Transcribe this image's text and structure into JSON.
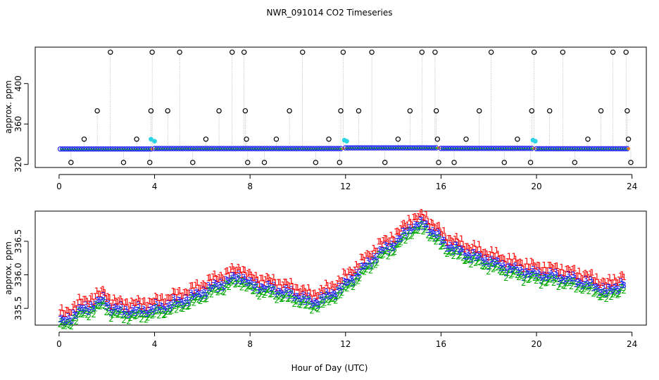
{
  "figure": {
    "title": "NWR_091014  CO2 Timeseries",
    "xlabel": "Hour of Day (UTC)"
  },
  "colors": {
    "black": "#000000",
    "blue": "#1a1aff",
    "green": "#00aa00",
    "red": "#ff0000",
    "cyan": "#2ad4e4",
    "orange": "#ff7f1e",
    "stem": "#9a9a9a"
  },
  "chart_data": [
    {
      "type": "scatter",
      "ylabel": "approx. ppm",
      "xlim": [
        -1,
        24.6
      ],
      "ylim": [
        317,
        436
      ],
      "xticks": [
        0,
        4,
        8,
        12,
        16,
        20,
        24
      ],
      "yticks": [
        320,
        360,
        400
      ],
      "xtick_labels": [
        "0",
        "4",
        "8",
        "12",
        "16",
        "20",
        "24"
      ],
      "ytick_labels": [
        "320",
        "360",
        "400"
      ],
      "baseline_segments": [
        {
          "start": 0.05,
          "end": 3.85,
          "value": 335.3
        },
        {
          "start": 4.0,
          "end": 11.85,
          "value": 335.7
        },
        {
          "start": 12.0,
          "end": 15.85,
          "value": 336.4
        },
        {
          "start": 16.0,
          "end": 19.85,
          "value": 335.9
        },
        {
          "start": 20.0,
          "end": 23.8,
          "value": 335.6
        }
      ],
      "baseline_step_hours": 0.1,
      "outlier_series": {
        "name": "raw spikes (black circles)",
        "points": [
          [
            0.5,
            322
          ],
          [
            1.05,
            345
          ],
          [
            1.6,
            373
          ],
          [
            2.15,
            431
          ],
          [
            2.7,
            322
          ],
          [
            3.25,
            345
          ],
          [
            3.8,
            322
          ],
          [
            3.85,
            373
          ],
          [
            3.9,
            431
          ],
          [
            4.55,
            373
          ],
          [
            5.05,
            431
          ],
          [
            5.6,
            322
          ],
          [
            6.15,
            345
          ],
          [
            6.7,
            373
          ],
          [
            7.25,
            431
          ],
          [
            7.75,
            431
          ],
          [
            7.8,
            373
          ],
          [
            7.85,
            345
          ],
          [
            7.9,
            322
          ],
          [
            8.6,
            322
          ],
          [
            9.1,
            345
          ],
          [
            9.65,
            373
          ],
          [
            10.2,
            431
          ],
          [
            10.75,
            322
          ],
          [
            11.3,
            345
          ],
          [
            11.75,
            322
          ],
          [
            11.8,
            373
          ],
          [
            11.9,
            431
          ],
          [
            12.55,
            373
          ],
          [
            13.1,
            431
          ],
          [
            13.65,
            322
          ],
          [
            14.2,
            345
          ],
          [
            14.7,
            373
          ],
          [
            15.2,
            431
          ],
          [
            15.75,
            431
          ],
          [
            15.8,
            373
          ],
          [
            15.85,
            345
          ],
          [
            15.9,
            322
          ],
          [
            16.55,
            322
          ],
          [
            17.05,
            345
          ],
          [
            17.6,
            373
          ],
          [
            18.1,
            431
          ],
          [
            18.65,
            322
          ],
          [
            19.2,
            345
          ],
          [
            19.75,
            322
          ],
          [
            19.8,
            373
          ],
          [
            19.9,
            431
          ],
          [
            20.55,
            373
          ],
          [
            21.1,
            431
          ],
          [
            21.6,
            322
          ],
          [
            22.15,
            345
          ],
          [
            22.7,
            373
          ],
          [
            23.2,
            431
          ],
          [
            23.75,
            431
          ],
          [
            23.8,
            373
          ],
          [
            23.85,
            345
          ],
          [
            23.95,
            322
          ]
        ]
      },
      "highlight_series": {
        "name": "cyan points",
        "points": [
          [
            3.85,
            345
          ],
          [
            4.0,
            343
          ],
          [
            11.95,
            344
          ],
          [
            12.05,
            343
          ],
          [
            19.85,
            344
          ],
          [
            19.95,
            343
          ]
        ]
      }
    },
    {
      "type": "scatter",
      "ylabel": "approx. ppm",
      "xlim": [
        -1,
        24.6
      ],
      "ylim": [
        335.25,
        336.95
      ],
      "xticks": [
        0,
        4,
        8,
        12,
        16,
        20,
        24
      ],
      "yticks": [
        335.5,
        336.0,
        336.5
      ],
      "xtick_labels": [
        "0",
        "4",
        "8",
        "12",
        "16",
        "20",
        "24"
      ],
      "ytick_labels": [
        "335.5",
        "336.0",
        "336.5"
      ],
      "x_start": 0.05,
      "x_step": 0.0667,
      "marker_labels": [
        "1",
        "2",
        "3"
      ],
      "series": [
        {
          "name": "1",
          "color": "red",
          "offset": 0.12
        },
        {
          "name": "2",
          "color": "green",
          "offset": -0.07
        },
        {
          "name": "3",
          "color": "blue",
          "offset": 0.0
        }
      ],
      "trend_knots": [
        [
          0.0,
          335.28
        ],
        [
          0.3,
          335.32
        ],
        [
          0.8,
          335.45
        ],
        [
          1.5,
          335.55
        ],
        [
          1.9,
          335.63
        ],
        [
          2.2,
          335.48
        ],
        [
          3.0,
          335.45
        ],
        [
          3.8,
          335.47
        ],
        [
          4.5,
          335.53
        ],
        [
          5.5,
          335.65
        ],
        [
          6.5,
          335.82
        ],
        [
          7.6,
          335.98
        ],
        [
          8.0,
          335.85
        ],
        [
          9.0,
          335.78
        ],
        [
          10.0,
          335.68
        ],
        [
          10.6,
          335.58
        ],
        [
          11.4,
          335.7
        ],
        [
          12.0,
          335.86
        ],
        [
          12.6,
          336.05
        ],
        [
          13.4,
          336.32
        ],
        [
          14.2,
          336.5
        ],
        [
          14.7,
          336.7
        ],
        [
          15.3,
          336.76
        ],
        [
          15.7,
          336.62
        ],
        [
          16.2,
          336.45
        ],
        [
          17.0,
          336.32
        ],
        [
          18.0,
          336.2
        ],
        [
          19.0,
          336.08
        ],
        [
          20.0,
          336.0
        ],
        [
          21.0,
          335.96
        ],
        [
          22.0,
          335.88
        ],
        [
          22.6,
          335.8
        ],
        [
          23.0,
          335.74
        ],
        [
          23.4,
          335.82
        ],
        [
          23.7,
          335.9
        ]
      ]
    }
  ]
}
